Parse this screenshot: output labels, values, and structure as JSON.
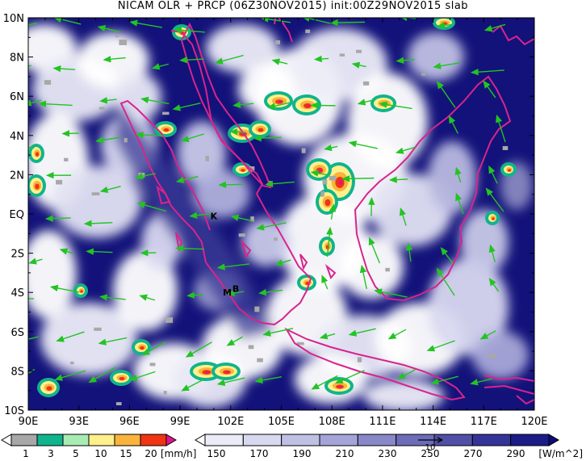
{
  "title": "NICAM OLR + PRCP (06Z30NOV2015) init:00Z29NOV2015 slab",
  "map": {
    "lon_labels": [
      "90E",
      "93E",
      "96E",
      "99E",
      "102E",
      "105E",
      "108E",
      "111E",
      "114E",
      "117E",
      "120E"
    ],
    "lat_labels": [
      "10N",
      "8N",
      "6N",
      "4N",
      "2N",
      "EQ",
      "2S",
      "4S",
      "6S",
      "8S",
      "10S"
    ],
    "place_markers": [
      {
        "label": "K",
        "lon": 101.0,
        "lat": -0.1
      },
      {
        "label": "M",
        "lon": 101.8,
        "lat": -4.0
      },
      {
        "label": "B",
        "lon": 102.3,
        "lat": -3.8
      }
    ],
    "colors": {
      "coast": "#d8248c",
      "wind": "#22c422",
      "olr_dark": "#12127a",
      "olr_mid": "#5a5aa8",
      "olr_light": "#c8c8e8"
    }
  },
  "prcp_colorbar": {
    "labels": [
      "1",
      "3",
      "5",
      "10",
      "15",
      "20"
    ],
    "unit": "[mm/h]",
    "colors": [
      "#ffffff",
      "#a8a8a8",
      "#10b48c",
      "#a8ecb4",
      "#fff08c",
      "#f8b43c",
      "#f03414",
      "#e0148c"
    ]
  },
  "olr_colorbar": {
    "labels": [
      "150",
      "170",
      "190",
      "210",
      "230",
      "250",
      "270",
      "290"
    ],
    "unit": "[W/m^2]",
    "vector_ref": "10",
    "colors": [
      "#ffffff",
      "#ececf8",
      "#d8d8f0",
      "#c0c0e4",
      "#a4a4d8",
      "#8888c8",
      "#6c6cb8",
      "#5050a8",
      "#343498",
      "#1c1c88",
      "#0c0c78"
    ]
  }
}
